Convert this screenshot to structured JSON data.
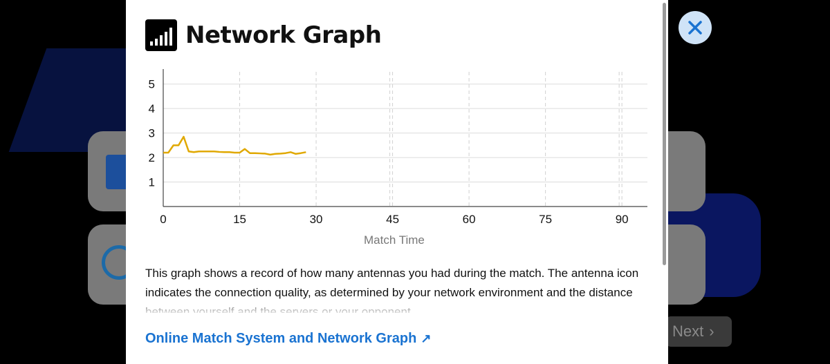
{
  "modal": {
    "title": "Network Graph",
    "description": "This graph shows a record of how many antennas you had during the match. The antenna icon indicates the connection quality, as determined by your network environment and the distance between yourself and the servers or your opponent.",
    "link_label": "Online Match System and Network Graph",
    "link_arrow": "↗",
    "close_icon": "close-icon"
  },
  "background": {
    "next_label": "Next",
    "next_chevron": "›"
  },
  "colors": {
    "line": "#e0a800",
    "link": "#1a73d1",
    "close_bg": "#cfe3f7",
    "close_x": "#1a73d1"
  },
  "chart_data": {
    "type": "line",
    "xlabel": "Match Time",
    "ylabel": "",
    "x_ticks": [
      0,
      15,
      30,
      45,
      60,
      75,
      90
    ],
    "y_ticks": [
      1,
      2,
      3,
      4,
      5
    ],
    "xlim": [
      0,
      95
    ],
    "ylim": [
      0,
      5.5
    ],
    "grid": true,
    "series": [
      {
        "x": [
          0,
          1,
          2,
          3,
          4,
          5,
          6,
          7,
          8,
          9,
          10,
          11,
          12,
          13,
          14,
          15,
          16,
          17,
          18,
          19,
          20,
          21,
          22,
          23,
          24,
          25,
          26,
          27,
          28
        ],
        "y": [
          2.2,
          2.2,
          2.5,
          2.5,
          2.85,
          2.25,
          2.22,
          2.25,
          2.25,
          2.25,
          2.25,
          2.23,
          2.22,
          2.22,
          2.2,
          2.2,
          2.35,
          2.18,
          2.18,
          2.17,
          2.16,
          2.12,
          2.15,
          2.16,
          2.18,
          2.22,
          2.15,
          2.18,
          2.22
        ]
      }
    ]
  }
}
